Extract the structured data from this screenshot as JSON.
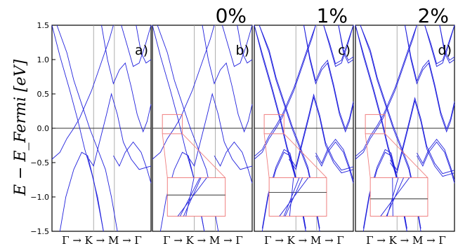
{
  "figure": {
    "ylabel": "E − E_Fermi [eV]",
    "xlabel": "Γ → K → M → Γ",
    "yticks": [
      "1.5",
      "1.0",
      "0.5",
      "0.0",
      "−0.5",
      "−1.0",
      "−1.5"
    ],
    "colors": {
      "bands": "#2222dd",
      "inset": "#f08080",
      "axis": "#000000",
      "grid": "#9a9a9a"
    }
  },
  "chart_data": [
    {
      "type": "line",
      "panel_label": "a)",
      "strain_label": "",
      "ylim": [
        -1.5,
        1.5
      ],
      "x_ticks": [
        "Γ",
        "K",
        "M",
        "Γ"
      ],
      "inset": false
    },
    {
      "type": "line",
      "panel_label": "b)",
      "strain_label": "0%",
      "ylim": [
        -1.5,
        1.5
      ],
      "x_ticks": [
        "Γ",
        "K",
        "M",
        "Γ"
      ],
      "inset": true
    },
    {
      "type": "line",
      "panel_label": "c)",
      "strain_label": "1%",
      "ylim": [
        -1.5,
        1.5
      ],
      "x_ticks": [
        "Γ",
        "K",
        "M",
        "Γ"
      ],
      "inset": true
    },
    {
      "type": "line",
      "panel_label": "d)",
      "strain_label": "2%",
      "ylim": [
        -1.5,
        1.5
      ],
      "x_ticks": [
        "Γ",
        "K",
        "M",
        "Γ"
      ],
      "inset": true
    }
  ]
}
